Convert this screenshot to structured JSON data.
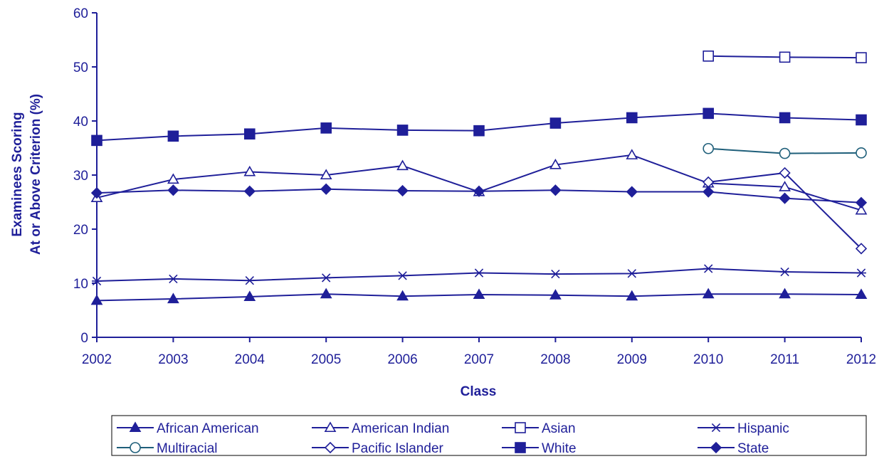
{
  "chart_data": {
    "type": "line",
    "title": "",
    "xlabel": "Class",
    "ylabel_lines": [
      "Examinees Scoring",
      "At or Above Criterion (%)"
    ],
    "x": [
      "2002",
      "2003",
      "2004",
      "2005",
      "2006",
      "2007",
      "2008",
      "2009",
      "2010",
      "2011",
      "2012"
    ],
    "yticks": [
      "0",
      "10",
      "20",
      "30",
      "40",
      "50",
      "60"
    ],
    "ylim": [
      0,
      60
    ],
    "grid": false,
    "legend_position": "bottom",
    "colors": {
      "primary": "#1f1f99",
      "multiracial": "#1f5f7a"
    },
    "series": [
      {
        "name": "African American",
        "marker": "triangle-filled",
        "values": [
          6.8,
          7.1,
          7.5,
          8.0,
          7.6,
          7.9,
          7.8,
          7.6,
          8.0,
          8.0,
          7.9
        ]
      },
      {
        "name": "American Indian",
        "marker": "triangle-open",
        "values": [
          25.8,
          29.2,
          30.6,
          30.0,
          31.7,
          26.9,
          31.9,
          33.7,
          28.5,
          27.8,
          23.5
        ]
      },
      {
        "name": "Asian",
        "marker": "square-open",
        "values": [
          null,
          null,
          null,
          null,
          null,
          null,
          null,
          null,
          52.0,
          51.8,
          51.7
        ]
      },
      {
        "name": "Hispanic",
        "marker": "asterisk",
        "values": [
          10.4,
          10.8,
          10.5,
          11.0,
          11.4,
          11.9,
          11.7,
          11.8,
          12.7,
          12.1,
          11.9
        ]
      },
      {
        "name": "Multiracial",
        "marker": "circle-open",
        "values": [
          null,
          null,
          null,
          null,
          null,
          null,
          null,
          null,
          34.9,
          34.0,
          34.1
        ]
      },
      {
        "name": "Pacific Islander",
        "marker": "diamond-open",
        "values": [
          null,
          null,
          null,
          null,
          null,
          null,
          null,
          null,
          28.7,
          30.4,
          16.4
        ]
      },
      {
        "name": "White",
        "marker": "square-filled",
        "values": [
          36.4,
          37.2,
          37.6,
          38.7,
          38.3,
          38.2,
          39.6,
          40.6,
          41.4,
          40.6,
          40.2
        ]
      },
      {
        "name": "State",
        "marker": "diamond-filled",
        "values": [
          26.7,
          27.2,
          27.0,
          27.4,
          27.1,
          27.0,
          27.2,
          26.9,
          26.9,
          25.7,
          24.9
        ]
      }
    ]
  }
}
